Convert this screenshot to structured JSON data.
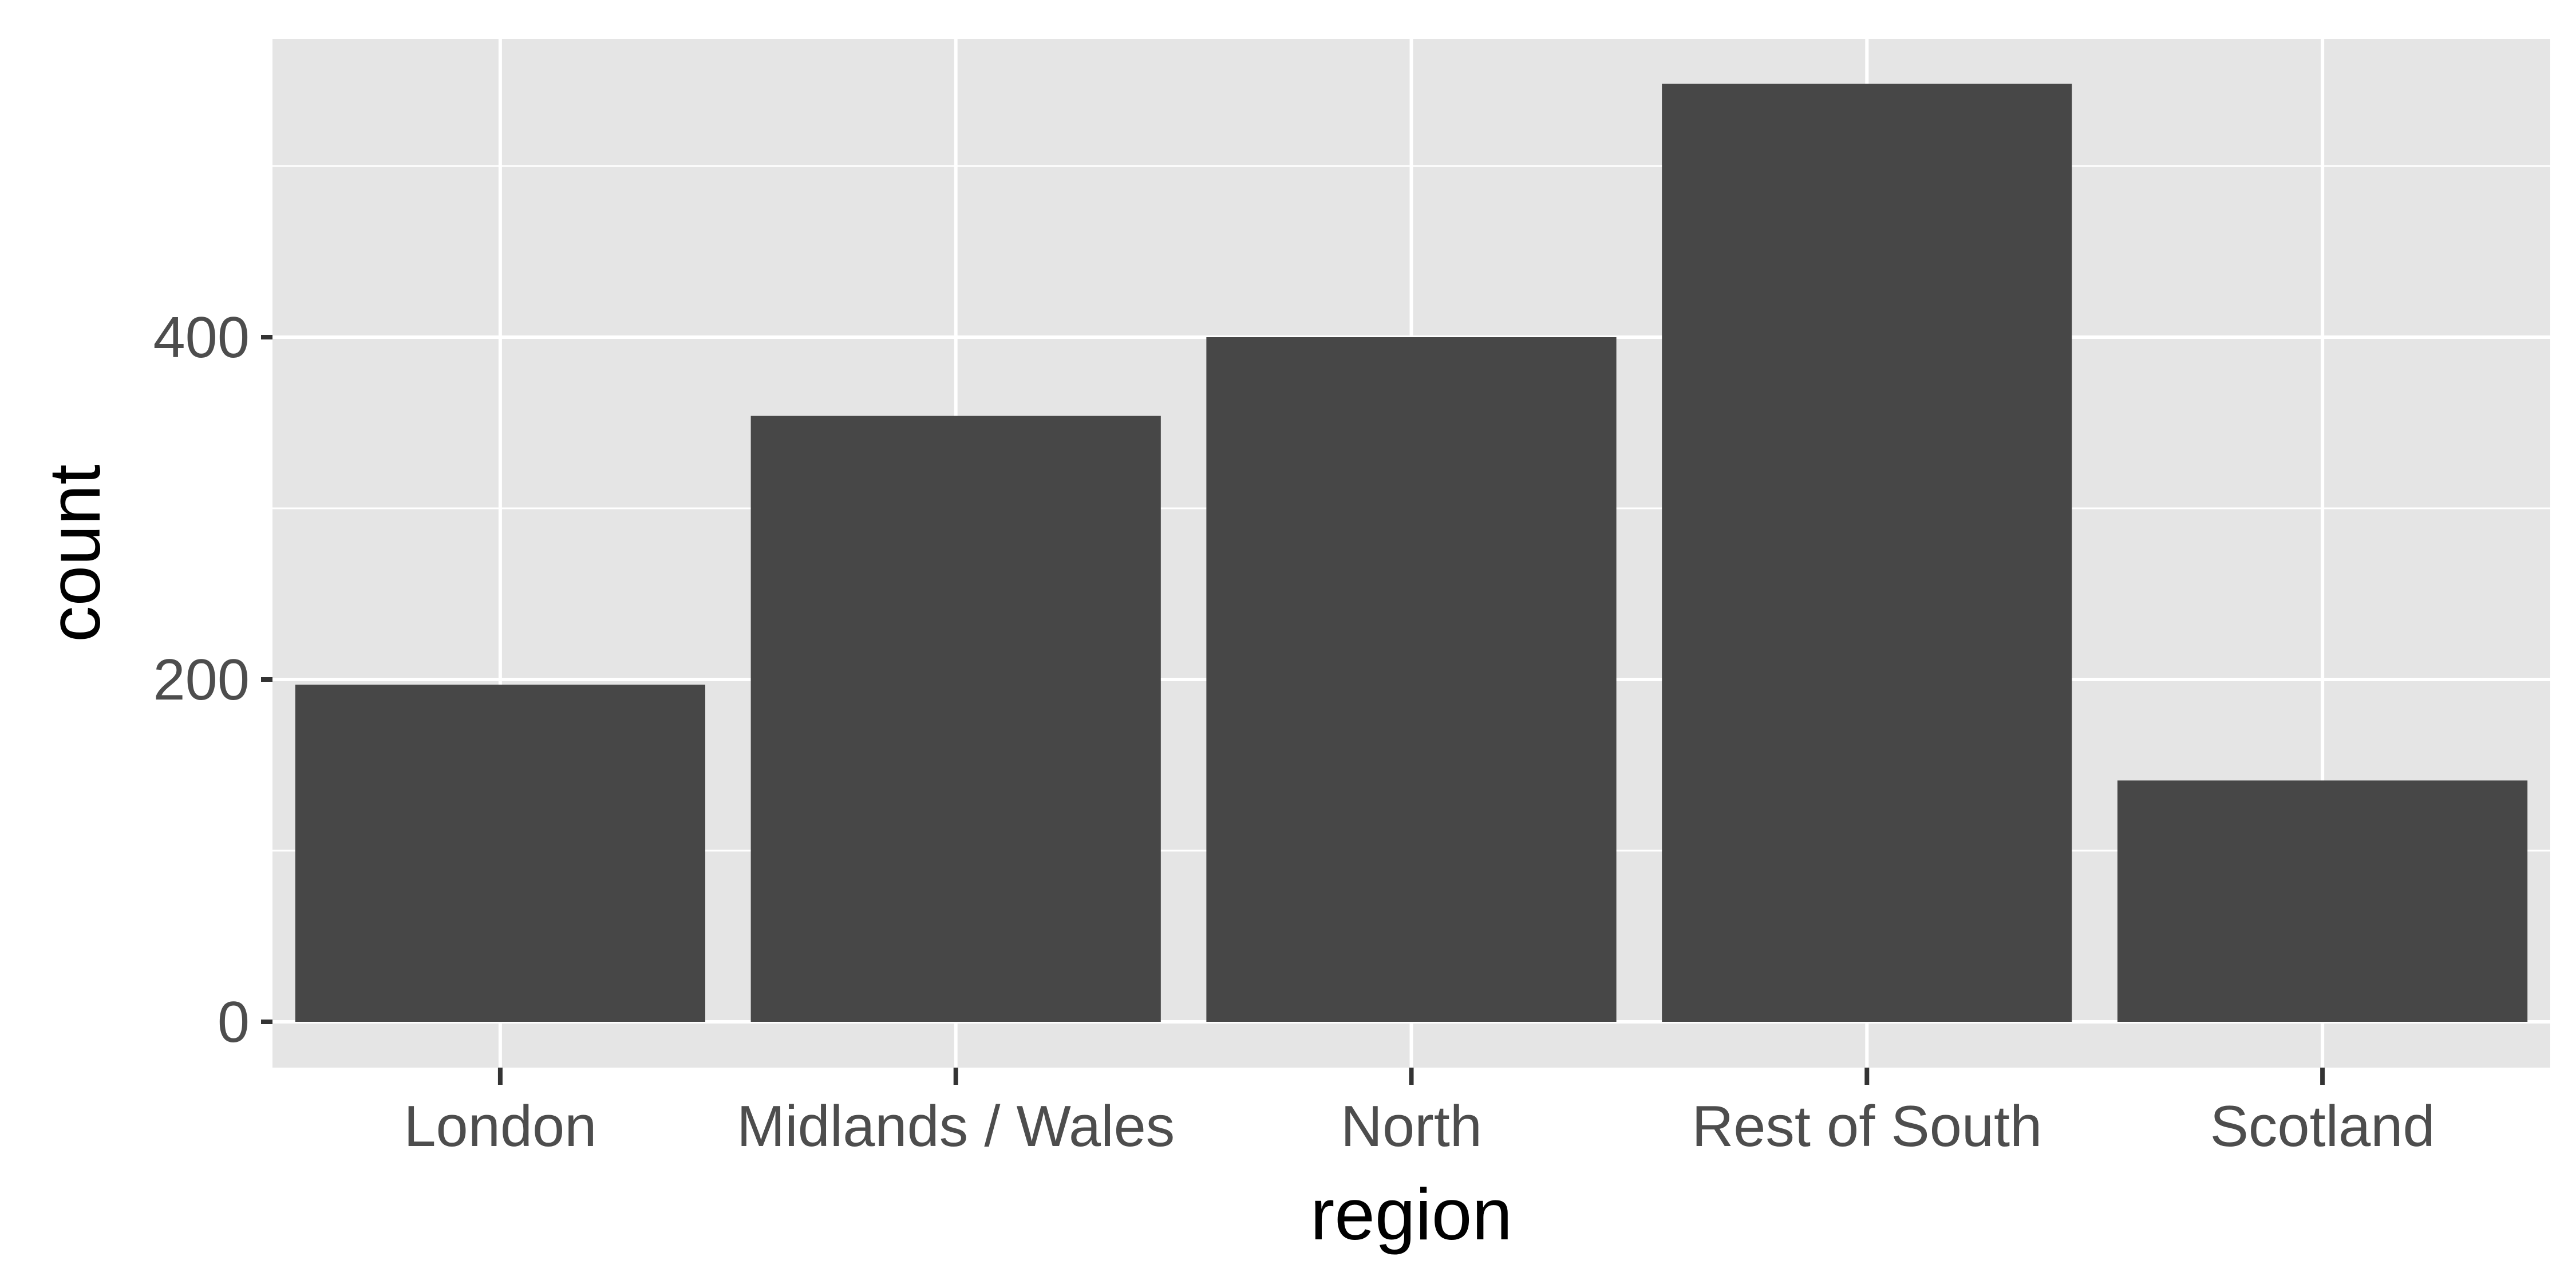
{
  "chart_data": {
    "type": "bar",
    "title": "",
    "xlabel": "region",
    "ylabel": "count",
    "categories": [
      "London",
      "Midlands / Wales",
      "North",
      "Rest of South",
      "Scotland"
    ],
    "values": [
      197,
      354,
      400,
      548,
      141
    ],
    "ylim": [
      0,
      580
    ],
    "yticks": [
      0,
      200,
      400
    ],
    "ytick_labels": [
      "0",
      "200",
      "400"
    ],
    "grid": true,
    "legend": "none",
    "colors": {
      "panel_background": "#e5e5e5",
      "grid_line": "#ffffff",
      "bar_fill": "#474747",
      "tick_color": "#333333",
      "tick_label_color": "#4d4d4d",
      "axis_title_color": "#000000"
    }
  }
}
